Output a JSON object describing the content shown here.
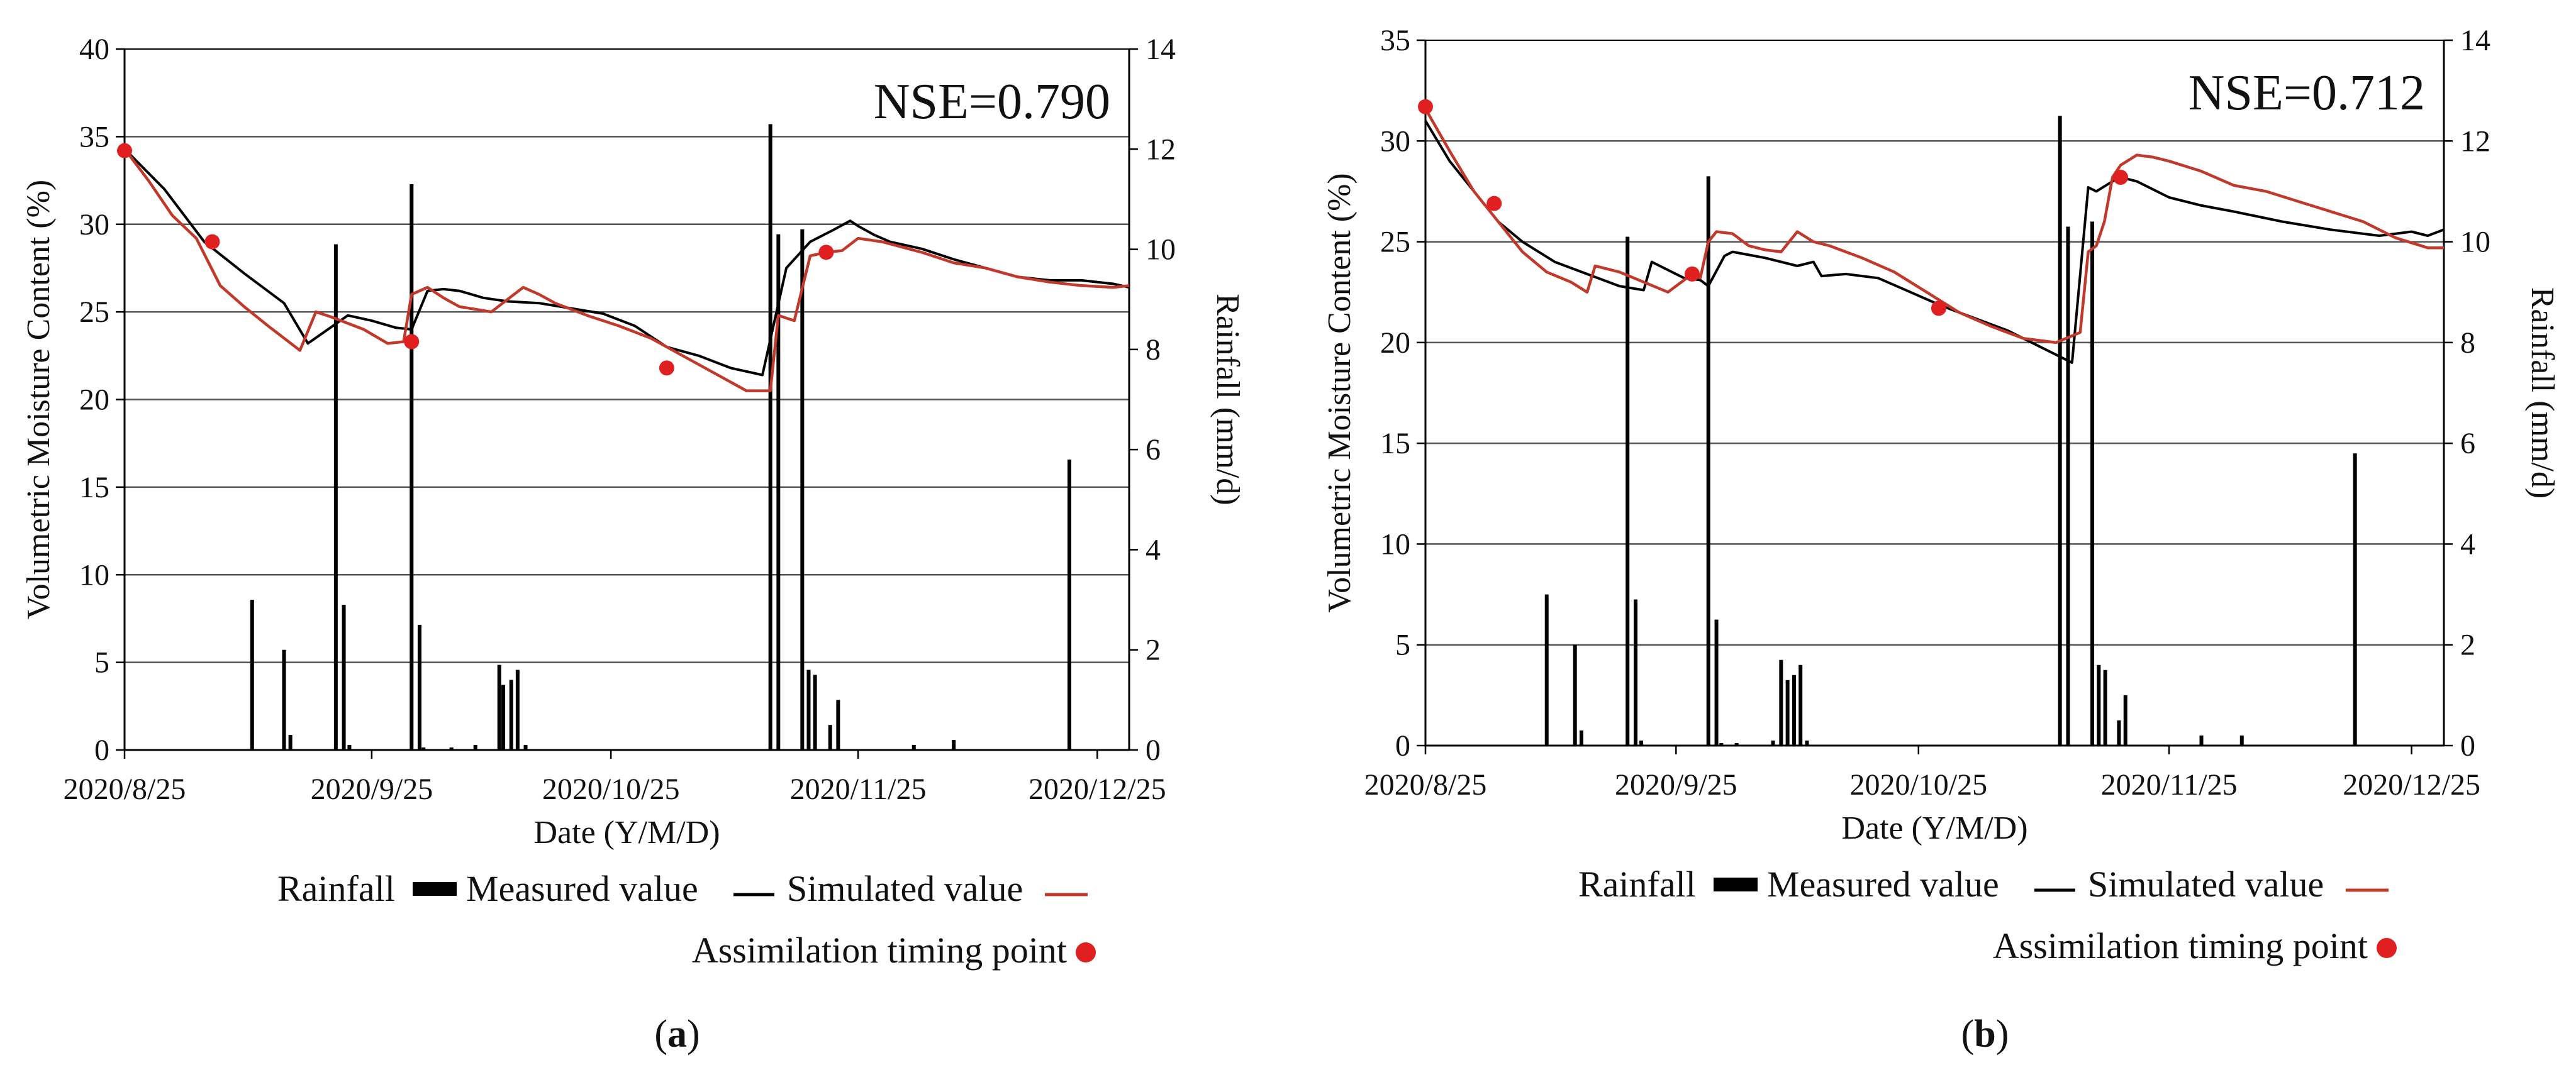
{
  "colors": {
    "measured": "#000000",
    "simulated": "#c0392b",
    "assimilation": "#e02020",
    "rainfall": "#000000",
    "grid": "#555555"
  },
  "legend": {
    "rainfall": "Rainfall",
    "measured": "Measured value",
    "simulated": "Simulated value",
    "assimilation": "Assimilation timing point"
  },
  "chart_data": [
    {
      "panel_label": "a",
      "type": "line",
      "nse_text": "NSE=0.790",
      "xlabel": "Date (Y/M/D)",
      "ylabel": "Volumetric Moisture Content (%)",
      "y2label": "Rainfall (mm/d)",
      "x_start": "2020/8/25",
      "x_range": [
        0,
        126
      ],
      "x_ticks": [
        0,
        31,
        61,
        92,
        122
      ],
      "x_tick_labels": [
        "2020/8/25",
        "2020/9/25",
        "2020/10/25",
        "2020/11/25",
        "2020/12/25"
      ],
      "ylim": [
        0,
        40
      ],
      "y_ticks": [
        0,
        5,
        10,
        15,
        20,
        25,
        30,
        35,
        40
      ],
      "y2lim": [
        0,
        14
      ],
      "y2_ticks": [
        0,
        2,
        4,
        6,
        8,
        10,
        12,
        14
      ],
      "grid_y": [
        5,
        10,
        15,
        20,
        25,
        30,
        35
      ],
      "measured": {
        "x": [
          0,
          5,
          10,
          15,
          20,
          23,
          28,
          31,
          34,
          36,
          38,
          40,
          42,
          45,
          48,
          52,
          56,
          60,
          64,
          68,
          72,
          76,
          80,
          83,
          86,
          89,
          91,
          92,
          94,
          96,
          100,
          104,
          108,
          112,
          116,
          120,
          124,
          126
        ],
        "y": [
          34.3,
          32.0,
          29.0,
          27.2,
          25.5,
          23.2,
          24.8,
          24.5,
          24.1,
          24.0,
          26.2,
          26.3,
          26.2,
          25.8,
          25.6,
          25.5,
          25.2,
          24.9,
          24.2,
          23.0,
          22.5,
          21.8,
          21.4,
          27.5,
          29.0,
          29.7,
          30.2,
          29.9,
          29.4,
          29.0,
          28.6,
          28.0,
          27.5,
          27.0,
          26.8,
          26.8,
          26.6,
          26.4
        ]
      },
      "simulated": {
        "x": [
          0,
          3,
          6,
          9,
          12,
          15,
          18,
          22,
          24,
          26,
          30,
          33,
          35,
          36,
          38,
          40,
          42,
          46,
          50,
          52,
          54,
          58,
          62,
          66,
          70,
          74,
          78,
          81,
          82,
          84,
          86,
          88,
          90,
          92,
          95,
          100,
          104,
          108,
          112,
          116,
          120,
          124,
          126
        ],
        "y": [
          34.3,
          32.5,
          30.5,
          29.2,
          26.5,
          25.3,
          24.2,
          22.8,
          25.0,
          24.7,
          24.0,
          23.2,
          23.3,
          26.0,
          26.4,
          25.8,
          25.3,
          25.0,
          26.4,
          26.0,
          25.5,
          24.8,
          24.2,
          23.5,
          22.5,
          21.5,
          20.5,
          20.5,
          24.8,
          24.5,
          28.2,
          28.4,
          28.5,
          29.2,
          29.0,
          28.4,
          27.8,
          27.5,
          27.0,
          26.7,
          26.5,
          26.4,
          26.5
        ]
      },
      "assimilation_points": {
        "x": [
          0,
          11,
          36,
          68,
          88
        ],
        "y": [
          34.2,
          29.0,
          23.3,
          21.8,
          28.4
        ]
      },
      "rainfall": {
        "x": [
          16,
          20,
          20.8,
          26.5,
          27.5,
          28.2,
          36,
          37,
          37.5,
          41,
          44,
          47,
          47.5,
          48.5,
          49.3,
          50.3,
          81,
          82,
          85,
          85.8,
          86.6,
          88.5,
          89.5,
          99,
          104,
          118.5
        ],
        "values": [
          3.0,
          2.0,
          0.3,
          10.1,
          2.9,
          0.1,
          11.3,
          2.5,
          0.05,
          0.05,
          0.1,
          1.7,
          1.3,
          1.4,
          1.6,
          0.1,
          12.5,
          10.3,
          10.4,
          1.6,
          1.5,
          0.5,
          1.0,
          0.1,
          0.2,
          5.8
        ]
      }
    },
    {
      "panel_label": "b",
      "type": "line",
      "nse_text": "NSE=0.712",
      "xlabel": "Date (Y/M/D)",
      "ylabel": "Volumetric Moisture Content (%)",
      "y2label": "Rainfall (mm/d)",
      "x_start": "2020/8/25",
      "x_range": [
        0,
        126
      ],
      "x_ticks": [
        0,
        31,
        61,
        92,
        122
      ],
      "x_tick_labels": [
        "2020/8/25",
        "2020/9/25",
        "2020/10/25",
        "2020/11/25",
        "2020/12/25"
      ],
      "ylim": [
        0,
        35
      ],
      "y_ticks": [
        0,
        5,
        10,
        15,
        20,
        25,
        30,
        35
      ],
      "y2lim": [
        0,
        14
      ],
      "y2_ticks": [
        0,
        2,
        4,
        6,
        8,
        10,
        12,
        14
      ],
      "grid_y": [
        5,
        10,
        15,
        20,
        25,
        30
      ],
      "measured": {
        "x": [
          0,
          3,
          6,
          9,
          12,
          16,
          20,
          24,
          27,
          28,
          30,
          32,
          34,
          35,
          37,
          38,
          42,
          46,
          48,
          49,
          52,
          56,
          60,
          64,
          68,
          72,
          76,
          80,
          82,
          83,
          85,
          86,
          88,
          90,
          92,
          96,
          100,
          106,
          112,
          118,
          122,
          124,
          126
        ],
        "y": [
          31.0,
          29.0,
          27.5,
          26.0,
          25.0,
          24.0,
          23.4,
          22.8,
          22.6,
          24.0,
          23.6,
          23.2,
          23.1,
          22.8,
          24.3,
          24.5,
          24.2,
          23.8,
          24.0,
          23.3,
          23.4,
          23.2,
          22.5,
          21.8,
          21.2,
          20.6,
          19.8,
          19.0,
          27.7,
          27.5,
          28.0,
          28.2,
          28.0,
          27.6,
          27.2,
          26.8,
          26.5,
          26.0,
          25.6,
          25.3,
          25.5,
          25.3,
          25.6
        ]
      },
      "simulated": {
        "x": [
          0,
          3,
          6,
          9,
          12,
          15,
          18,
          20,
          21,
          24,
          27,
          30,
          33,
          34,
          35,
          36,
          38,
          40,
          42,
          44,
          46,
          48,
          50,
          54,
          58,
          62,
          66,
          70,
          74,
          78,
          81,
          82,
          83,
          84,
          85,
          86,
          88,
          90,
          92,
          96,
          100,
          104,
          108,
          112,
          116,
          120,
          124,
          126
        ],
        "y": [
          31.6,
          29.5,
          27.5,
          26.0,
          24.5,
          23.5,
          23.0,
          22.5,
          23.8,
          23.5,
          23.0,
          22.5,
          23.4,
          23.2,
          25.0,
          25.5,
          25.4,
          24.8,
          24.6,
          24.5,
          25.5,
          25.0,
          24.8,
          24.2,
          23.5,
          22.5,
          21.5,
          20.8,
          20.2,
          20.0,
          20.5,
          24.5,
          24.8,
          26.0,
          28.2,
          28.8,
          29.3,
          29.2,
          29.0,
          28.5,
          27.8,
          27.5,
          27.0,
          26.5,
          26.0,
          25.2,
          24.7,
          24.7
        ]
      },
      "assimilation_points": {
        "x": [
          0,
          8.5,
          33,
          63.5,
          86
        ],
        "y": [
          31.7,
          26.9,
          23.4,
          21.7,
          28.2
        ]
      },
      "rainfall": {
        "x": [
          15,
          18.5,
          19.3,
          25,
          26,
          26.7,
          35,
          36,
          36.6,
          38.5,
          43,
          44,
          44.8,
          45.6,
          46.4,
          47.2,
          78.5,
          79.5,
          82.5,
          83.3,
          84.1,
          85.8,
          86.6,
          96,
          101,
          115
        ],
        "values": [
          3.0,
          2.0,
          0.3,
          10.1,
          2.9,
          0.1,
          11.3,
          2.5,
          0.05,
          0.05,
          0.1,
          1.7,
          1.3,
          1.4,
          1.6,
          0.1,
          12.5,
          10.3,
          10.4,
          1.6,
          1.5,
          0.5,
          1.0,
          0.2,
          0.2,
          5.8
        ]
      }
    }
  ]
}
